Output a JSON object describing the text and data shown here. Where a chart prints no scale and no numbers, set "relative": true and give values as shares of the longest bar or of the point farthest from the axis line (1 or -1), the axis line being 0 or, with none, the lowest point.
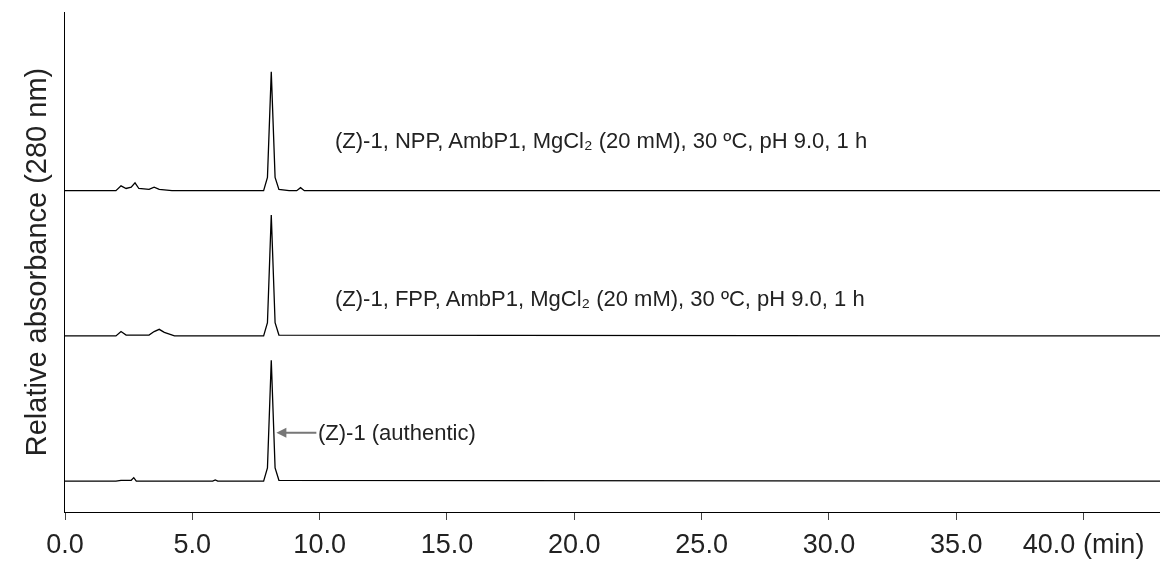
{
  "chart_data": {
    "type": "line",
    "relative": true,
    "ylabel": "Relative absorbance (280 nm)",
    "xlim": [
      0,
      43
    ],
    "xticks": [
      {
        "value": 0,
        "label": "0.0"
      },
      {
        "value": 5,
        "label": "5.0"
      },
      {
        "value": 10,
        "label": "10.0"
      },
      {
        "value": 15,
        "label": "15.0"
      },
      {
        "value": 20,
        "label": "20.0"
      },
      {
        "value": 25,
        "label": "25.0"
      },
      {
        "value": 30,
        "label": "30.0"
      },
      {
        "value": 35,
        "label": "35.0"
      },
      {
        "value": 40,
        "label": "40.0 (min)"
      }
    ],
    "annotations": [
      "(Z)-1, NPP, AmbP1, MgCl₂ (20 mM), 30 ºC, pH 9.0, 1 h",
      "(Z)-1, FPP, AmbP1, MgCl₂ (20 mM), 30 ºC, pH 9.0, 1 h",
      {
        "text": "(Z)-1 (authentic)",
        "x": 8.3,
        "y": 0.18
      }
    ],
    "series": [
      {
        "color": "#000000",
        "x": [
          0,
          2.0,
          2.2,
          2.4,
          2.6,
          2.75,
          2.9,
          3.3,
          3.5,
          3.7,
          4.2,
          7.8,
          7.95,
          8.1,
          8.25,
          8.4,
          8.8,
          9.1,
          9.25,
          9.4,
          43
        ],
        "values": [
          0.73,
          0.73,
          0.741,
          0.735,
          0.738,
          0.748,
          0.735,
          0.733,
          0.738,
          0.733,
          0.73,
          0.73,
          0.76,
          1,
          0.76,
          0.733,
          0.73,
          0.73,
          0.737,
          0.73,
          0.73
        ]
      },
      {
        "color": "#000000",
        "x": [
          0,
          2.0,
          2.2,
          2.4,
          2.8,
          3.3,
          3.5,
          3.7,
          3.9,
          4.3,
          7.8,
          7.95,
          8.1,
          8.25,
          8.4,
          43
        ],
        "values": [
          0.4,
          0.4,
          0.41,
          0.402,
          0.402,
          0.402,
          0.41,
          0.415,
          0.408,
          0.4,
          0.4,
          0.43,
          0.675,
          0.43,
          0.402,
          0.4
        ]
      },
      {
        "color": "#000000",
        "x": [
          0,
          2.0,
          2.2,
          2.6,
          2.7,
          2.8,
          5.8,
          5.9,
          6.0,
          7.8,
          7.95,
          8.1,
          8.25,
          8.4,
          43
        ],
        "values": [
          0.07,
          0.07,
          0.072,
          0.072,
          0.078,
          0.07,
          0.07,
          0.073,
          0.07,
          0.07,
          0.1,
          0.345,
          0.1,
          0.072,
          0.07
        ]
      }
    ]
  }
}
